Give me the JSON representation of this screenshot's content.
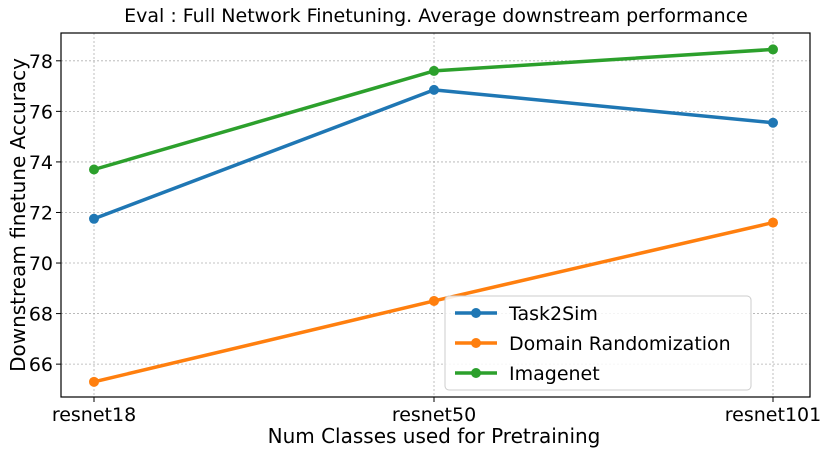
{
  "chart_data": {
    "type": "line",
    "title": "Eval : Full Network Finetuning. Average downstream performance",
    "xlabel": "Num Classes used for Pretraining",
    "ylabel": "Downstream finetune Accuracy",
    "categories": [
      "resnet18",
      "resnet50",
      "resnet101"
    ],
    "ylim": [
      64.7,
      79.1
    ],
    "yticks": [
      66,
      68,
      70,
      72,
      74,
      76,
      78
    ],
    "grid": true,
    "legend_position": "lower-right",
    "series": [
      {
        "name": "Task2Sim",
        "color": "#1f77b4",
        "values": [
          71.75,
          76.85,
          75.55
        ]
      },
      {
        "name": "Domain Randomization",
        "color": "#ff7f0e",
        "values": [
          65.3,
          68.5,
          71.6
        ]
      },
      {
        "name": "Imagenet",
        "color": "#2ca02c",
        "values": [
          73.7,
          77.6,
          78.45
        ]
      }
    ]
  }
}
